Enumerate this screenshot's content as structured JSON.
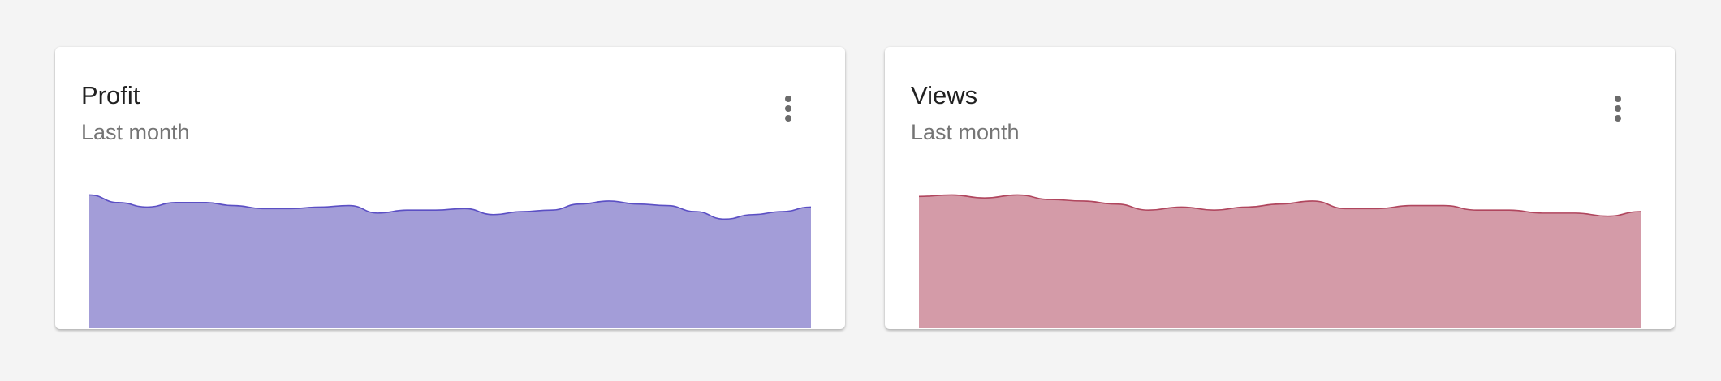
{
  "chart_data": [
    {
      "type": "area",
      "title": "Profit",
      "subtitle": "Last month",
      "values": [
        88,
        83,
        80,
        83,
        83,
        81,
        79,
        79,
        80,
        81,
        76,
        78,
        78,
        79,
        75,
        77,
        78,
        82,
        84,
        82,
        81,
        77,
        72,
        75,
        77,
        80
      ],
      "ylim": [
        0,
        100
      ],
      "color": "#a39dd8",
      "line_color": "#5b4fc4"
    },
    {
      "type": "area",
      "title": "Views",
      "subtitle": "Last month",
      "values": [
        87,
        88,
        86,
        88,
        85,
        84,
        82,
        78,
        80,
        78,
        80,
        82,
        84,
        79,
        79,
        81,
        81,
        78,
        78,
        76,
        76,
        74,
        77
      ],
      "ylim": [
        0,
        100
      ],
      "color": "#d49ba8",
      "line_color": "#b0465e"
    }
  ]
}
